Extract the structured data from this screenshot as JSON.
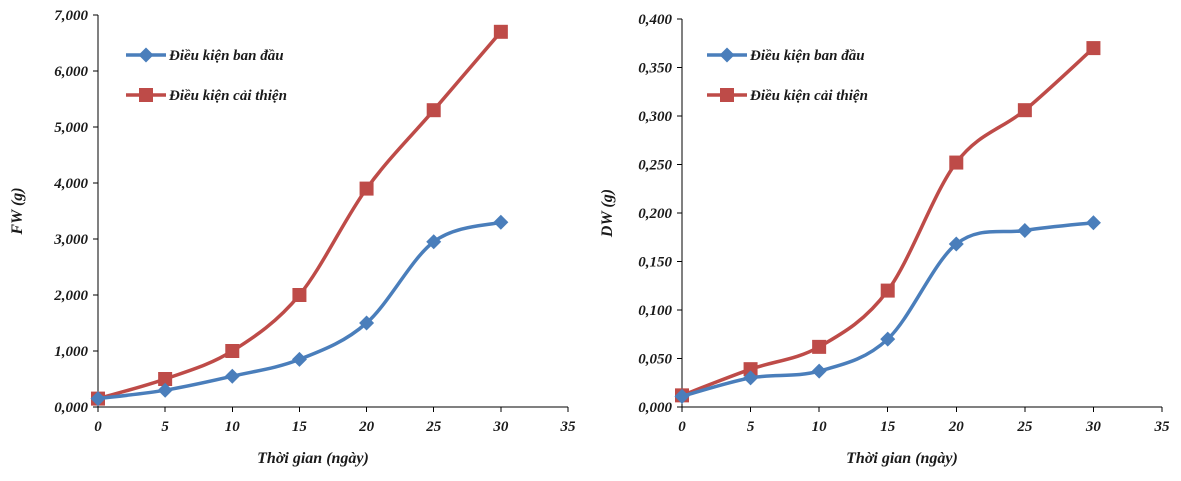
{
  "chart_data": [
    {
      "type": "line",
      "xlabel": "Thời gian (ngày)",
      "ylabel": "FW (g)",
      "xlim": [
        0,
        35
      ],
      "ylim": [
        0,
        7
      ],
      "x_ticks": [
        "0",
        "5",
        "10",
        "15",
        "20",
        "25",
        "30",
        "35"
      ],
      "y_ticks": [
        "0,000",
        "1,000",
        "2,000",
        "3,000",
        "4,000",
        "5,000",
        "6,000",
        "7,000"
      ],
      "grid": false,
      "legend_position": "top-left",
      "x": [
        0,
        5,
        10,
        15,
        20,
        25,
        30
      ],
      "series": [
        {
          "name": "Điều kiện ban đầu",
          "values": [
            0.15,
            0.3,
            0.55,
            0.85,
            1.5,
            2.95,
            3.3
          ],
          "color": "#4a7ebb",
          "marker": "diamond"
        },
        {
          "name": "Điều kiện cải thiện",
          "values": [
            0.15,
            0.5,
            1.0,
            2.0,
            3.9,
            5.3,
            6.7
          ],
          "color": "#be4b48",
          "marker": "square"
        }
      ]
    },
    {
      "type": "line",
      "xlabel": "Thời gian (ngày)",
      "ylabel": "DW (g)",
      "xlim": [
        0,
        35
      ],
      "ylim": [
        0,
        0.4
      ],
      "x_ticks": [
        "0",
        "5",
        "10",
        "15",
        "20",
        "25",
        "30",
        "35"
      ],
      "y_ticks": [
        "0,000",
        "0,050",
        "0,100",
        "0,150",
        "0,200",
        "0,250",
        "0,300",
        "0,350",
        "0,400"
      ],
      "grid": false,
      "legend_position": "top-left",
      "x": [
        0,
        5,
        10,
        15,
        20,
        25,
        30
      ],
      "series": [
        {
          "name": "Điều kiện ban đầu",
          "values": [
            0.011,
            0.03,
            0.037,
            0.07,
            0.168,
            0.182,
            0.19
          ],
          "color": "#4a7ebb",
          "marker": "diamond"
        },
        {
          "name": "Điều kiện cải thiện",
          "values": [
            0.012,
            0.039,
            0.062,
            0.12,
            0.252,
            0.306,
            0.37
          ],
          "color": "#be4b48",
          "marker": "square"
        }
      ]
    }
  ]
}
